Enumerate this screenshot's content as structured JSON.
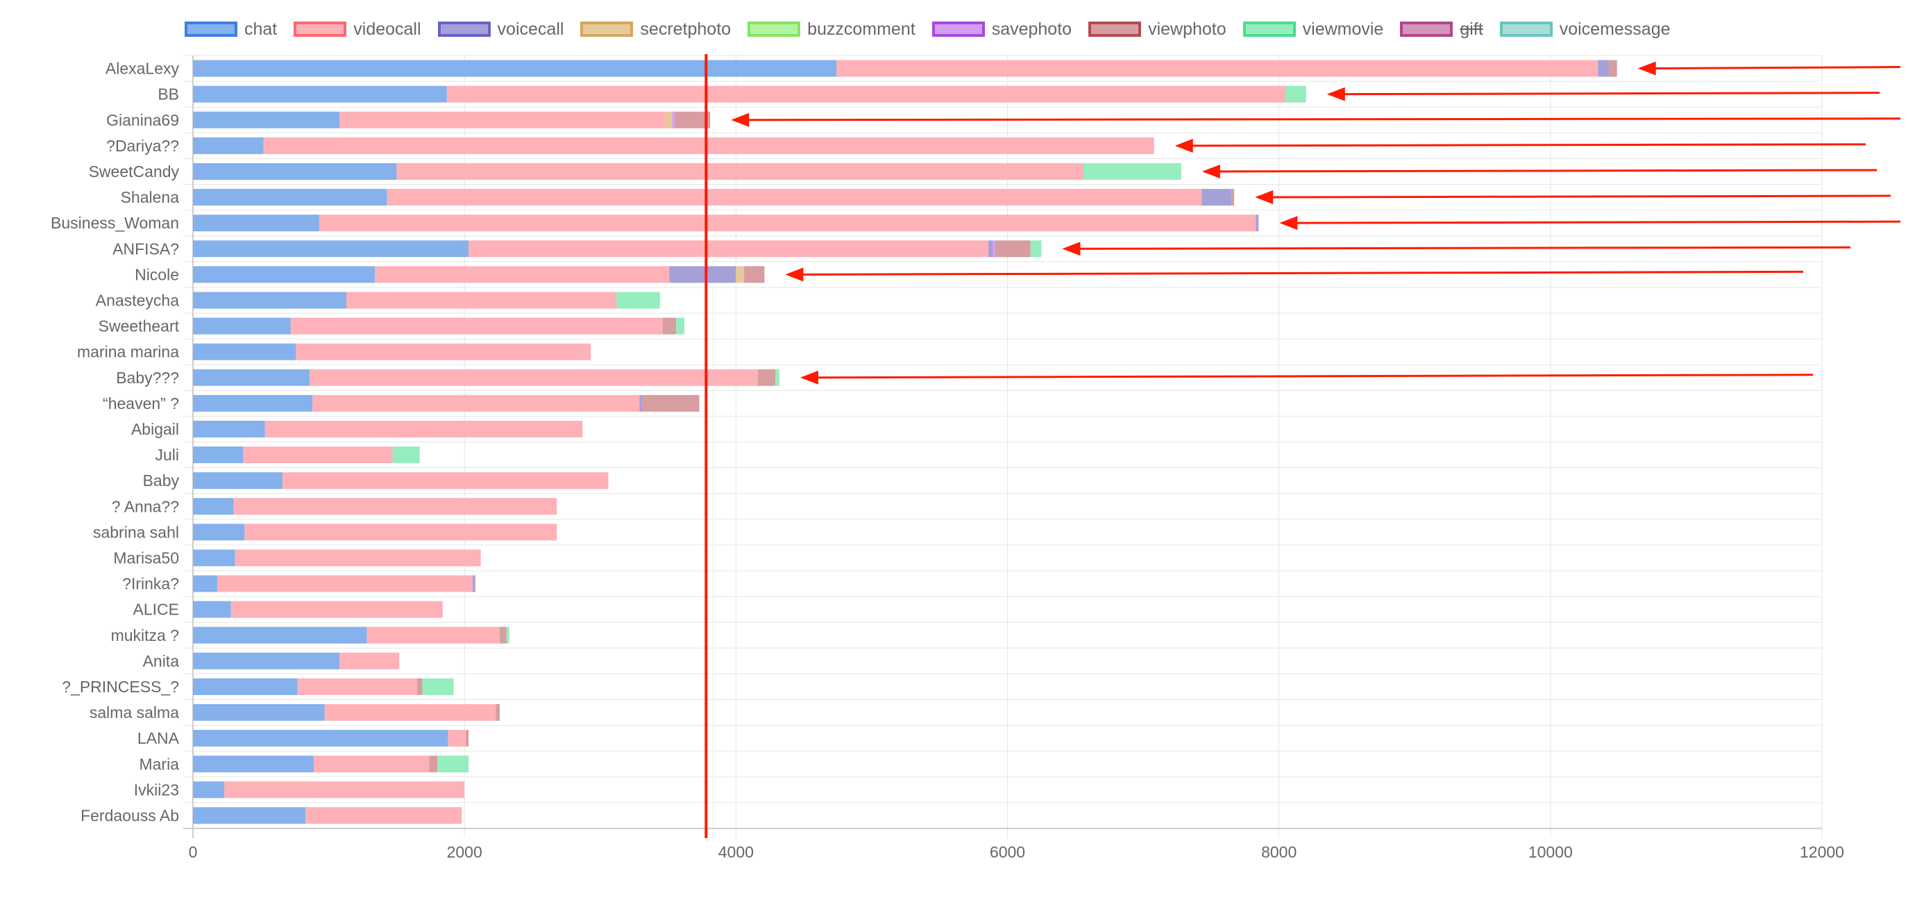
{
  "chart_data": {
    "type": "bar",
    "orientation": "horizontal",
    "stacked": true,
    "legend_position": "top",
    "grid": true,
    "xlim": [
      0,
      12000
    ],
    "xticks": [
      "0",
      "2000",
      "4000",
      "6000",
      "8000",
      "10000",
      "12000"
    ],
    "xlabel": "",
    "ylabel": "",
    "title": "",
    "reference_line_x": 3780,
    "categories": [
      "AlexaLexy",
      "BB",
      "Gianina69",
      "?Dariya??",
      "SweetCandy",
      "Shalena",
      "Business_Woman",
      "ANFISA?",
      "Nicole",
      "Anasteycha",
      "Sweetheart",
      "marina marina",
      "Baby???",
      "“heaven” ?",
      "Abigail",
      "Juli",
      "Baby",
      "? Anna??",
      "sabrina sahl",
      "Marisa50",
      "?Irinka?",
      "ALICE",
      "mukitza ?",
      "Anita",
      "?_PRINCESS_?",
      "salma salma",
      "LANA",
      "Maria",
      "Ivkii23",
      "Ferdaouss Ab"
    ],
    "series": [
      {
        "name": "chat",
        "hidden": false,
        "fill": "#85b1ec",
        "border": "#3f7fdd",
        "values": [
          4740,
          1870,
          1080,
          520,
          1500,
          1430,
          930,
          2030,
          1340,
          1130,
          720,
          760,
          860,
          880,
          530,
          370,
          660,
          300,
          380,
          310,
          180,
          280,
          1280,
          1080,
          770,
          970,
          1880,
          890,
          230,
          830
        ]
      },
      {
        "name": "videocall",
        "hidden": false,
        "fill": "#ffb1b8",
        "border": "#ff6673",
        "values": [
          5610,
          6180,
          2400,
          6560,
          5060,
          6000,
          6900,
          3830,
          2170,
          1990,
          2740,
          2170,
          3300,
          2410,
          2340,
          1100,
          2400,
          2380,
          2300,
          1810,
          1880,
          1560,
          980,
          440,
          880,
          1260,
          130,
          850,
          1770,
          1150
        ]
      },
      {
        "name": "voicecall",
        "hidden": false,
        "fill": "#a6a0d8",
        "border": "#6a61c6",
        "values": [
          80,
          0,
          0,
          0,
          0,
          220,
          20,
          30,
          490,
          0,
          0,
          0,
          0,
          20,
          0,
          0,
          0,
          0,
          0,
          0,
          20,
          0,
          0,
          0,
          0,
          0,
          0,
          0,
          0,
          0
        ]
      },
      {
        "name": "secretphoto",
        "hidden": false,
        "fill": "#e8c99a",
        "border": "#d6a75f",
        "values": [
          0,
          0,
          50,
          0,
          0,
          0,
          0,
          0,
          60,
          0,
          0,
          0,
          0,
          0,
          0,
          0,
          0,
          0,
          0,
          0,
          0,
          0,
          0,
          0,
          0,
          0,
          0,
          0,
          0,
          0
        ]
      },
      {
        "name": "buzzcomment",
        "hidden": false,
        "fill": "#b4f4a0",
        "border": "#84e563",
        "values": [
          0,
          0,
          0,
          0,
          0,
          0,
          0,
          0,
          0,
          0,
          0,
          0,
          0,
          0,
          0,
          0,
          0,
          0,
          0,
          0,
          0,
          0,
          0,
          0,
          0,
          0,
          0,
          0,
          0,
          0
        ]
      },
      {
        "name": "savephoto",
        "hidden": false,
        "fill": "#d49ef0",
        "border": "#a748e0",
        "values": [
          0,
          0,
          20,
          0,
          0,
          0,
          0,
          20,
          0,
          0,
          0,
          0,
          0,
          0,
          0,
          0,
          0,
          0,
          0,
          0,
          0,
          0,
          0,
          0,
          0,
          0,
          0,
          0,
          0,
          0
        ]
      },
      {
        "name": "viewphoto",
        "hidden": false,
        "fill": "#d79da0",
        "border": "#b54b51",
        "values": [
          60,
          0,
          260,
          0,
          0,
          20,
          0,
          260,
          150,
          0,
          100,
          0,
          130,
          420,
          0,
          0,
          0,
          0,
          0,
          0,
          0,
          0,
          50,
          0,
          40,
          30,
          20,
          60,
          0,
          0
        ]
      },
      {
        "name": "viewmovie",
        "hidden": false,
        "fill": "#96edbf",
        "border": "#4bdc8b",
        "values": [
          0,
          150,
          0,
          0,
          720,
          0,
          0,
          80,
          0,
          320,
          60,
          0,
          30,
          0,
          0,
          200,
          0,
          0,
          0,
          0,
          0,
          0,
          20,
          0,
          230,
          0,
          0,
          230,
          0,
          0
        ]
      },
      {
        "name": "gift",
        "hidden": true,
        "fill": "#d296bb",
        "border": "#b0478c",
        "values": [
          0,
          0,
          0,
          0,
          0,
          0,
          0,
          0,
          0,
          0,
          0,
          0,
          0,
          0,
          0,
          0,
          0,
          0,
          0,
          0,
          0,
          0,
          0,
          0,
          0,
          0,
          0,
          0,
          0,
          0
        ]
      },
      {
        "name": "voicemessage",
        "hidden": false,
        "fill": "#a7ddd8",
        "border": "#6cc4bb",
        "values": [
          0,
          0,
          0,
          0,
          0,
          0,
          0,
          0,
          0,
          0,
          0,
          0,
          0,
          0,
          0,
          0,
          0,
          0,
          0,
          0,
          0,
          0,
          0,
          0,
          0,
          0,
          0,
          0,
          0,
          0
        ]
      }
    ],
    "annotations": {
      "arrows_to_categories": [
        "AlexaLexy",
        "BB",
        "Gianina69",
        "?Dariya??",
        "SweetCandy",
        "Shalena",
        "Business_Woman",
        "ANFISA?",
        "Nicole",
        "Baby???"
      ],
      "arrow_color": "#ff1a00"
    }
  }
}
